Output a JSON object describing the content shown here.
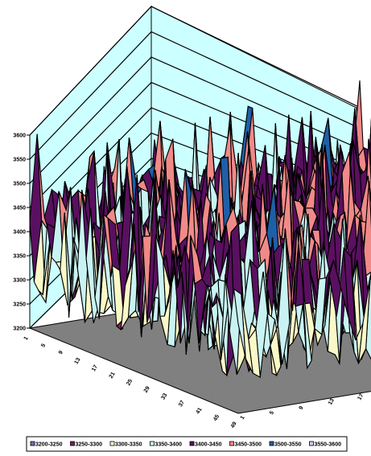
{
  "chart_data": {
    "type": "surface",
    "title": "",
    "zlim": [
      3200,
      3600
    ],
    "z_ticks": [
      "3200",
      "3250",
      "3300",
      "3350",
      "3400",
      "3450",
      "3500",
      "3550",
      "3600"
    ],
    "x_ticks": [
      "1",
      "5",
      "9",
      "13",
      "17",
      "21",
      "25",
      "29",
      "33",
      "37",
      "41",
      "45",
      "49"
    ],
    "y_ticks": [
      "1",
      "5",
      "9",
      "13",
      "17",
      "21",
      "25",
      "29",
      "33",
      "37",
      "41",
      "45"
    ],
    "grid_size": [
      49,
      46
    ],
    "legend": {
      "placement": "bottom",
      "entries": [
        {
          "label": "3200-3250",
          "color": "#6c6cb8"
        },
        {
          "label": "3250-3300",
          "color": "#7e1e5a"
        },
        {
          "label": "3300-3350",
          "color": "#fbf8c8"
        },
        {
          "label": "3350-3400",
          "color": "#c9f3f3"
        },
        {
          "label": "3400-3450",
          "color": "#5a1060"
        },
        {
          "label": "3450-3500",
          "color": "#f08a88"
        },
        {
          "label": "3500-3550",
          "color": "#1f5fa8"
        },
        {
          "label": "3550-3600",
          "color": "#ccccf2"
        }
      ]
    },
    "colors": {
      "wall": "#ccffff",
      "floor": "#808080"
    }
  }
}
